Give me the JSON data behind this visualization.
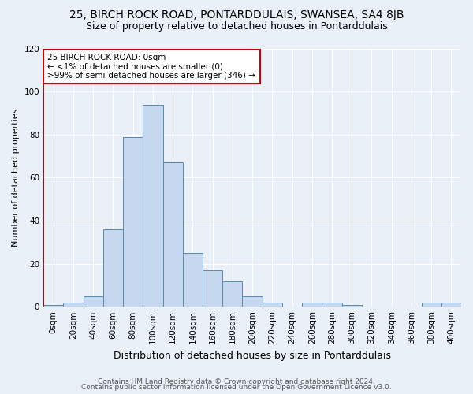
{
  "title1": "25, BIRCH ROCK ROAD, PONTARDDULAIS, SWANSEA, SA4 8JB",
  "title2": "Size of property relative to detached houses in Pontarddulais",
  "xlabel": "Distribution of detached houses by size in Pontarddulais",
  "ylabel": "Number of detached properties",
  "bin_labels": [
    "0sqm",
    "20sqm",
    "40sqm",
    "60sqm",
    "80sqm",
    "100sqm",
    "120sqm",
    "140sqm",
    "160sqm",
    "180sqm",
    "200sqm",
    "220sqm",
    "240sqm",
    "260sqm",
    "280sqm",
    "300sqm",
    "320sqm",
    "340sqm",
    "360sqm",
    "380sqm",
    "400sqm"
  ],
  "bar_values": [
    1,
    2,
    5,
    36,
    79,
    94,
    67,
    25,
    17,
    12,
    5,
    2,
    0,
    2,
    2,
    1,
    0,
    0,
    0,
    2,
    2
  ],
  "bar_color": "#c5d8f0",
  "bar_edge_color": "#5a8ab0",
  "annotation_line1": "25 BIRCH ROCK ROAD: 0sqm",
  "annotation_line2": "← <1% of detached houses are smaller (0)",
  "annotation_line3": ">99% of semi-detached houses are larger (346) →",
  "annotation_box_color": "#ffffff",
  "annotation_box_edge_color": "#cc0000",
  "vline_color": "#cc0000",
  "ylim": [
    0,
    120
  ],
  "yticks": [
    0,
    20,
    40,
    60,
    80,
    100,
    120
  ],
  "footer1": "Contains HM Land Registry data © Crown copyright and database right 2024.",
  "footer2": "Contains public sector information licensed under the Open Government Licence v3.0.",
  "bg_color": "#eaf0f8",
  "plot_bg_color": "#eaf0f8",
  "grid_color": "#ffffff",
  "title1_fontsize": 10,
  "title2_fontsize": 9,
  "xlabel_fontsize": 9,
  "ylabel_fontsize": 8,
  "tick_fontsize": 7.5,
  "footer_fontsize": 6.5,
  "annot_fontsize": 7.5
}
